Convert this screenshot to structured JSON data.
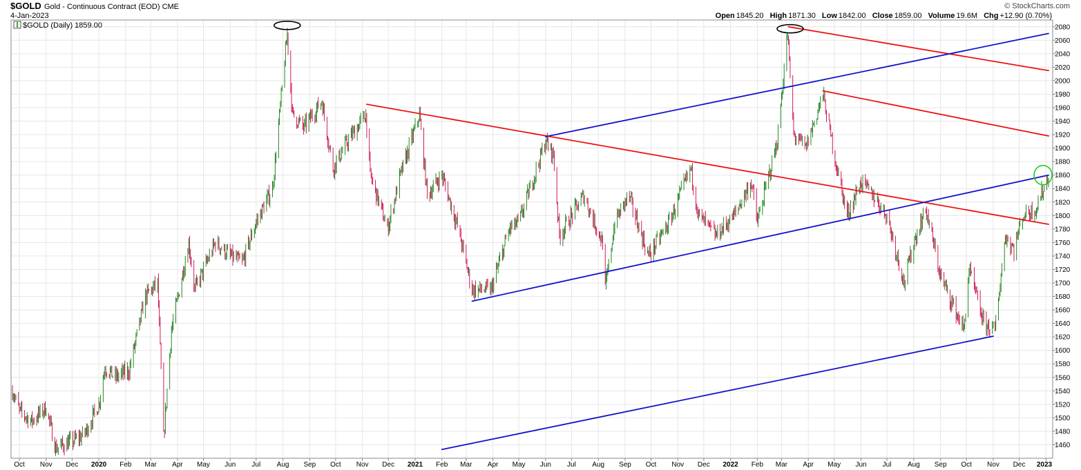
{
  "header": {
    "symbol": "$GOLD",
    "name": "Gold - Continuous Contract (EOD)",
    "exchange": "CME",
    "date": "4-Jan-2023",
    "brand": "© StockCharts.com",
    "open_label": "Open",
    "open": "1845.20",
    "high_label": "High",
    "high": "1871.30",
    "low_label": "Low",
    "low": "1842.00",
    "close_label": "Close",
    "close": "1859.00",
    "volume_label": "Volume",
    "volume": "19.6M",
    "chg_label": "Chg",
    "chg": "+12.90 (0.70%)"
  },
  "legend": {
    "text": "$GOLD (Daily) 1859.00"
  },
  "colors": {
    "up": "#0a7a0a",
    "down": "#cc0044",
    "red_line": "#ee1111",
    "blue_line": "#1111cc",
    "grid": "#e6e6e6",
    "ellipse_black": "#000000",
    "ellipse_green": "#22cc22"
  },
  "chart_data": {
    "type": "ohlc",
    "title": "$GOLD (Daily) 1859.00",
    "xlabel": "",
    "ylabel": "",
    "time_range": [
      "2019-09-23",
      "2023-01-04"
    ],
    "ylim": [
      1440,
      2090
    ],
    "grid": true,
    "y_ticks": [
      1460,
      1480,
      1500,
      1520,
      1540,
      1560,
      1580,
      1600,
      1620,
      1640,
      1660,
      1680,
      1700,
      1720,
      1740,
      1760,
      1780,
      1800,
      1820,
      1840,
      1860,
      1880,
      1900,
      1920,
      1940,
      1960,
      1980,
      2000,
      2020,
      2040,
      2060,
      2080
    ],
    "x_ticks": [
      {
        "date": "2019-10-01",
        "label": "Oct",
        "bold": false
      },
      {
        "date": "2019-11-01",
        "label": "Nov",
        "bold": false
      },
      {
        "date": "2019-12-01",
        "label": "Dec",
        "bold": false
      },
      {
        "date": "2020-01-01",
        "label": "2020",
        "bold": true
      },
      {
        "date": "2020-02-01",
        "label": "Feb",
        "bold": false
      },
      {
        "date": "2020-03-01",
        "label": "Mar",
        "bold": false
      },
      {
        "date": "2020-04-01",
        "label": "Apr",
        "bold": false
      },
      {
        "date": "2020-05-01",
        "label": "May",
        "bold": false
      },
      {
        "date": "2020-06-01",
        "label": "Jun",
        "bold": false
      },
      {
        "date": "2020-07-01",
        "label": "Jul",
        "bold": false
      },
      {
        "date": "2020-08-01",
        "label": "Aug",
        "bold": false
      },
      {
        "date": "2020-09-01",
        "label": "Sep",
        "bold": false
      },
      {
        "date": "2020-10-01",
        "label": "Oct",
        "bold": false
      },
      {
        "date": "2020-11-01",
        "label": "Nov",
        "bold": false
      },
      {
        "date": "2020-12-01",
        "label": "Dec",
        "bold": false
      },
      {
        "date": "2021-01-01",
        "label": "2021",
        "bold": true
      },
      {
        "date": "2021-02-01",
        "label": "Feb",
        "bold": false
      },
      {
        "date": "2021-03-01",
        "label": "Mar",
        "bold": false
      },
      {
        "date": "2021-04-01",
        "label": "Apr",
        "bold": false
      },
      {
        "date": "2021-05-01",
        "label": "May",
        "bold": false
      },
      {
        "date": "2021-06-01",
        "label": "Jun",
        "bold": false
      },
      {
        "date": "2021-07-01",
        "label": "Jul",
        "bold": false
      },
      {
        "date": "2021-08-01",
        "label": "Aug",
        "bold": false
      },
      {
        "date": "2021-09-01",
        "label": "Sep",
        "bold": false
      },
      {
        "date": "2021-10-01",
        "label": "Oct",
        "bold": false
      },
      {
        "date": "2021-11-01",
        "label": "Nov",
        "bold": false
      },
      {
        "date": "2021-12-01",
        "label": "Dec",
        "bold": false
      },
      {
        "date": "2022-01-01",
        "label": "2022",
        "bold": true
      },
      {
        "date": "2022-02-01",
        "label": "Feb",
        "bold": false
      },
      {
        "date": "2022-03-01",
        "label": "Mar",
        "bold": false
      },
      {
        "date": "2022-04-01",
        "label": "Apr",
        "bold": false
      },
      {
        "date": "2022-05-01",
        "label": "May",
        "bold": false
      },
      {
        "date": "2022-06-01",
        "label": "Jun",
        "bold": false
      },
      {
        "date": "2022-07-01",
        "label": "Jul",
        "bold": false
      },
      {
        "date": "2022-08-01",
        "label": "Aug",
        "bold": false
      },
      {
        "date": "2022-09-01",
        "label": "Sep",
        "bold": false
      },
      {
        "date": "2022-10-01",
        "label": "Oct",
        "bold": false
      },
      {
        "date": "2022-11-01",
        "label": "Nov",
        "bold": false
      },
      {
        "date": "2022-12-01",
        "label": "Dec",
        "bold": false
      },
      {
        "date": "2023-01-01",
        "label": "2023",
        "bold": true
      }
    ],
    "price_path": [
      [
        "2019-09-23",
        1540
      ],
      [
        "2019-10-01",
        1510
      ],
      [
        "2019-10-15",
        1495
      ],
      [
        "2019-11-01",
        1515
      ],
      [
        "2019-11-12",
        1455
      ],
      [
        "2019-12-01",
        1465
      ],
      [
        "2019-12-15",
        1475
      ],
      [
        "2020-01-01",
        1520
      ],
      [
        "2020-01-08",
        1575
      ],
      [
        "2020-01-20",
        1560
      ],
      [
        "2020-02-05",
        1570
      ],
      [
        "2020-02-24",
        1680
      ],
      [
        "2020-03-09",
        1700
      ],
      [
        "2020-03-16",
        1470
      ],
      [
        "2020-03-25",
        1630
      ],
      [
        "2020-04-14",
        1760
      ],
      [
        "2020-04-21",
        1690
      ],
      [
        "2020-05-15",
        1760
      ],
      [
        "2020-06-01",
        1740
      ],
      [
        "2020-06-15",
        1730
      ],
      [
        "2020-07-01",
        1790
      ],
      [
        "2020-07-20",
        1840
      ],
      [
        "2020-08-06",
        2070
      ],
      [
        "2020-08-12",
        1950
      ],
      [
        "2020-08-25",
        1930
      ],
      [
        "2020-09-15",
        1970
      ],
      [
        "2020-09-28",
        1870
      ],
      [
        "2020-10-15",
        1910
      ],
      [
        "2020-11-05",
        1950
      ],
      [
        "2020-11-10",
        1860
      ],
      [
        "2020-11-30",
        1780
      ],
      [
        "2020-12-15",
        1860
      ],
      [
        "2021-01-06",
        1950
      ],
      [
        "2021-01-15",
        1830
      ],
      [
        "2021-02-01",
        1860
      ],
      [
        "2021-02-20",
        1780
      ],
      [
        "2021-03-08",
        1690
      ],
      [
        "2021-03-30",
        1690
      ],
      [
        "2021-04-20",
        1780
      ],
      [
        "2021-05-01",
        1790
      ],
      [
        "2021-06-01",
        1910
      ],
      [
        "2021-06-10",
        1890
      ],
      [
        "2021-06-17",
        1770
      ],
      [
        "2021-07-15",
        1830
      ],
      [
        "2021-08-06",
        1760
      ],
      [
        "2021-08-09",
        1690
      ],
      [
        "2021-08-20",
        1790
      ],
      [
        "2021-09-05",
        1830
      ],
      [
        "2021-09-28",
        1740
      ],
      [
        "2021-10-22",
        1790
      ],
      [
        "2021-11-16",
        1870
      ],
      [
        "2021-11-25",
        1800
      ],
      [
        "2021-12-15",
        1770
      ],
      [
        "2022-01-05",
        1800
      ],
      [
        "2022-01-25",
        1850
      ],
      [
        "2022-02-01",
        1790
      ],
      [
        "2022-02-24",
        1910
      ],
      [
        "2022-03-08",
        2070
      ],
      [
        "2022-03-15",
        1920
      ],
      [
        "2022-03-29",
        1900
      ],
      [
        "2022-04-18",
        1980
      ],
      [
        "2022-05-01",
        1890
      ],
      [
        "2022-05-16",
        1800
      ],
      [
        "2022-06-01",
        1850
      ],
      [
        "2022-06-15",
        1830
      ],
      [
        "2022-07-01",
        1800
      ],
      [
        "2022-07-21",
        1700
      ],
      [
        "2022-08-01",
        1760
      ],
      [
        "2022-08-15",
        1810
      ],
      [
        "2022-09-01",
        1710
      ],
      [
        "2022-09-28",
        1630
      ],
      [
        "2022-10-04",
        1720
      ],
      [
        "2022-10-21",
        1640
      ],
      [
        "2022-11-03",
        1630
      ],
      [
        "2022-11-15",
        1770
      ],
      [
        "2022-11-25",
        1750
      ],
      [
        "2022-12-05",
        1800
      ],
      [
        "2022-12-20",
        1810
      ],
      [
        "2023-01-04",
        1859
      ]
    ],
    "trendlines": [
      {
        "name": "red-downtrend-main",
        "color": "red_line",
        "from": [
          "2020-11-06",
          1965
        ],
        "to": [
          "2023-01-04",
          1787
        ]
      },
      {
        "name": "red-channel-upper",
        "color": "red_line",
        "from": [
          "2022-03-09",
          2080
        ],
        "to": [
          "2023-01-04",
          2015
        ]
      },
      {
        "name": "red-channel-lower",
        "color": "red_line",
        "from": [
          "2022-04-18",
          1985
        ],
        "to": [
          "2023-01-04",
          1918
        ]
      },
      {
        "name": "blue-channel-upper",
        "color": "blue_line",
        "from": [
          "2021-06-01",
          1917
        ],
        "to": [
          "2023-01-04",
          2070
        ]
      },
      {
        "name": "blue-channel-middle",
        "color": "blue_line",
        "from": [
          "2021-03-08",
          1673
        ],
        "to": [
          "2023-01-04",
          1860
        ]
      },
      {
        "name": "blue-channel-lower",
        "color": "blue_line",
        "from": [
          "2021-02-01",
          1453
        ],
        "to": [
          "2022-11-01",
          1621
        ]
      }
    ],
    "annotations": [
      {
        "name": "top-2020-marker",
        "shape": "ellipse",
        "color": "ellipse_black",
        "at": [
          "2020-08-06",
          2082
        ]
      },
      {
        "name": "top-2022-marker",
        "shape": "ellipse",
        "color": "ellipse_black",
        "at": [
          "2022-03-11",
          2077
        ]
      },
      {
        "name": "breakout-marker",
        "shape": "ellipse",
        "color": "ellipse_green",
        "at": [
          "2022-12-31",
          1860
        ]
      }
    ]
  }
}
